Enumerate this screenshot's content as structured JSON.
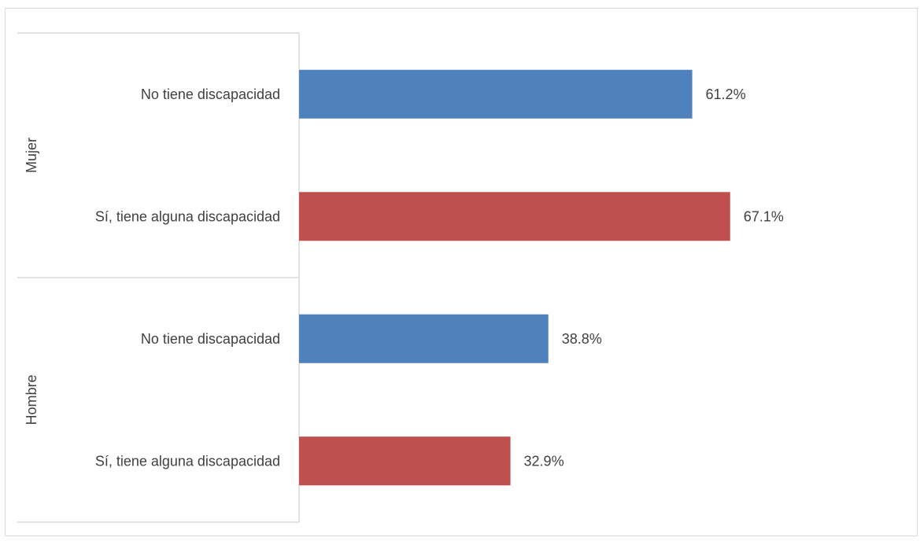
{
  "chart_data": {
    "type": "bar",
    "orientation": "horizontal",
    "groups": [
      {
        "name": "Mujer",
        "categories": [
          "No tiene discapacidad",
          "Sí, tiene alguna discapacidad"
        ],
        "values": [
          61.2,
          67.1
        ],
        "value_labels": [
          "61.2%",
          "67.1%"
        ]
      },
      {
        "name": "Hombre",
        "categories": [
          "No tiene discapacidad",
          "Sí, tiene alguna discapacidad"
        ],
        "values": [
          38.8,
          32.9
        ],
        "value_labels": [
          "38.8%",
          "32.9%"
        ]
      }
    ],
    "colors": [
      "#4f81bd",
      "#c0504d"
    ],
    "xlim": [
      0,
      80
    ],
    "grid": false,
    "legend": "none"
  }
}
